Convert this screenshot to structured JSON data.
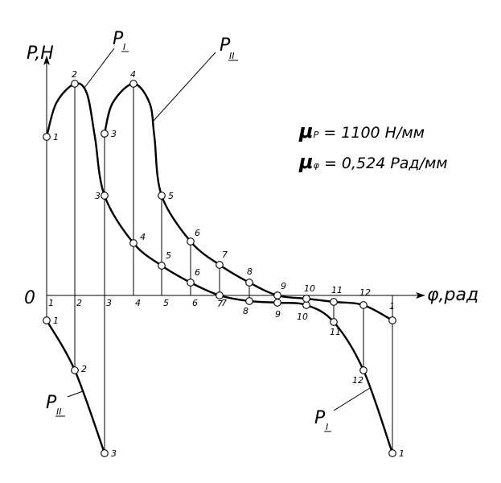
{
  "axes": {
    "y_label": "P,H",
    "x_label": "φ,рад",
    "origin_label": "0"
  },
  "curves": {
    "p1": {
      "letter": "P",
      "index": "I"
    },
    "p2": {
      "letter": "P",
      "index": "II"
    }
  },
  "scales": {
    "mu_p": {
      "symbol": "μ",
      "sub": "P",
      "value": "= 1100 Н/мм"
    },
    "mu_phi": {
      "symbol": "μ",
      "sub": "φ",
      "value": "= 0,524 Рад/мм"
    }
  },
  "axis_positions": [
    "1",
    "2",
    "3",
    "4",
    "5",
    "6",
    "7",
    "8",
    "9",
    "10",
    "11",
    "12",
    "1"
  ],
  "p1_point_labels": [
    "1",
    "2",
    "3",
    "4",
    "5",
    "6",
    "7",
    "8",
    "9",
    "10",
    "11",
    "12",
    "1"
  ],
  "p2_point_labels": [
    "1",
    "2",
    "3",
    "3",
    "4",
    "5",
    "6",
    "7",
    "8",
    "9",
    "10",
    "11",
    "12",
    "1"
  ],
  "colors": {
    "ink": "#000000",
    "background": "#ffffff"
  }
}
